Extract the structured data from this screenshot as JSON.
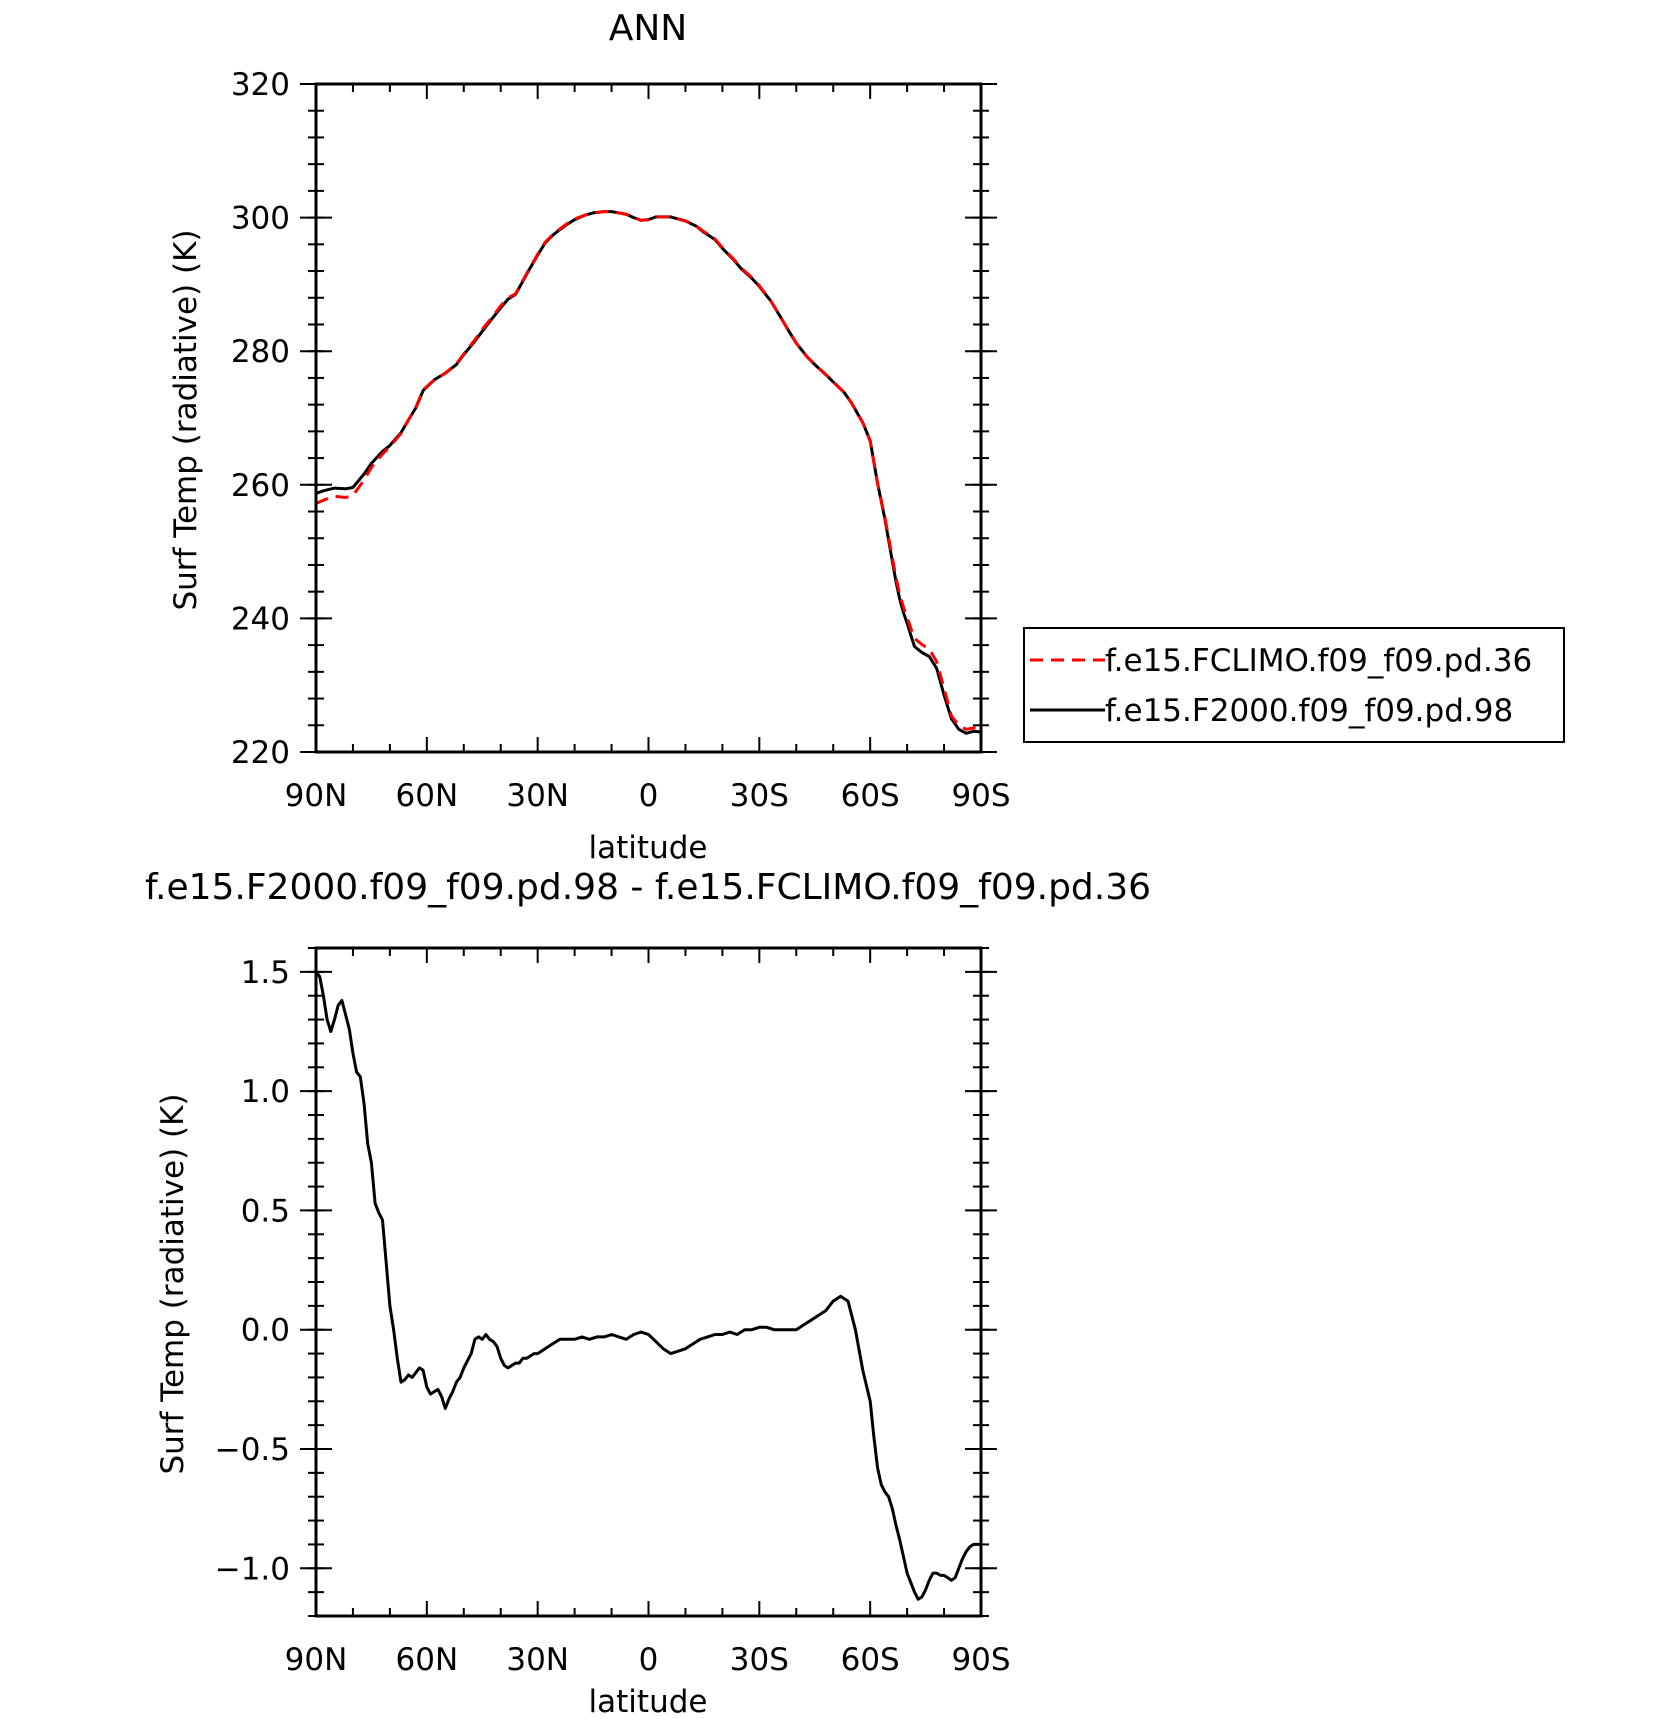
{
  "chart_data": [
    {
      "type": "line",
      "title": "ANN",
      "xlabel": "latitude",
      "ylabel": "Surf Temp (radiative) (K)",
      "xlim": [
        90,
        -90
      ],
      "ylim": [
        220,
        320
      ],
      "xticks": [
        90,
        60,
        30,
        0,
        -30,
        -60,
        -90
      ],
      "xtick_labels": [
        "90N",
        "60N",
        "30N",
        "0",
        "30S",
        "60S",
        "90S"
      ],
      "yticks": [
        220,
        240,
        260,
        280,
        300,
        320
      ],
      "ytick_labels": [
        "220",
        "240",
        "260",
        "280",
        "300",
        "320"
      ],
      "grid": false,
      "legend_position": "right",
      "series": [
        {
          "name": "f.e15.FCLIMO.f09_f09.pd.36",
          "color": "#ff0000",
          "dash": "dashed",
          "x": [
            90,
            88,
            85,
            82,
            80,
            77,
            75,
            72,
            70,
            67,
            65,
            63,
            61,
            58,
            55,
            52,
            50,
            47,
            45,
            42,
            40,
            38,
            36,
            34,
            32,
            30,
            28,
            26,
            24,
            22,
            20,
            17,
            15,
            12,
            10,
            8,
            6,
            4,
            2,
            0,
            -2,
            -4,
            -6,
            -8,
            -10,
            -13,
            -15,
            -18,
            -20,
            -23,
            -25,
            -28,
            -30,
            -33,
            -35,
            -38,
            -40,
            -43,
            -45,
            -48,
            -50,
            -53,
            -55,
            -58,
            -60,
            -62,
            -64,
            -65,
            -66,
            -67,
            -68,
            -69,
            -70,
            -71,
            -72,
            -74,
            -76,
            -78,
            -80,
            -82,
            -84,
            -86,
            -88,
            -90
          ],
          "y": [
            257.2,
            257.7,
            258.3,
            258.1,
            258.4,
            260.7,
            262.6,
            264.6,
            265.7,
            267.7,
            269.7,
            271.6,
            274.2,
            275.7,
            276.7,
            278.1,
            279.6,
            281.7,
            283.3,
            285.3,
            286.8,
            288.0,
            288.6,
            290.6,
            292.6,
            294.5,
            296.3,
            297.4,
            298.3,
            299.1,
            299.8,
            300.4,
            300.7,
            300.9,
            300.9,
            300.7,
            300.5,
            300.0,
            299.6,
            299.7,
            300.1,
            300.1,
            300.1,
            299.8,
            299.5,
            298.7,
            297.9,
            296.8,
            295.5,
            293.8,
            292.5,
            291.0,
            289.8,
            287.6,
            285.8,
            283.0,
            281.2,
            279.1,
            278.0,
            276.5,
            275.4,
            273.8,
            272.2,
            269.3,
            266.5,
            260.2,
            255.1,
            252.1,
            249.1,
            246.1,
            243.6,
            241.7,
            240.2,
            238.5,
            237.0,
            236.1,
            235.4,
            233.5,
            229.5,
            225.4,
            224.0,
            223.4,
            223.6,
            223.4
          ]
        },
        {
          "name": "f.e15.F2000.f09_f09.pd.98",
          "color": "#000000",
          "dash": "solid",
          "x": [
            90,
            88,
            85,
            82,
            80,
            77,
            75,
            72,
            70,
            67,
            65,
            63,
            61,
            58,
            55,
            52,
            50,
            47,
            45,
            42,
            40,
            38,
            36,
            34,
            32,
            30,
            28,
            26,
            24,
            22,
            20,
            17,
            15,
            12,
            10,
            8,
            6,
            4,
            2,
            0,
            -2,
            -4,
            -6,
            -8,
            -10,
            -13,
            -15,
            -18,
            -20,
            -23,
            -25,
            -28,
            -30,
            -33,
            -35,
            -38,
            -40,
            -43,
            -45,
            -48,
            -50,
            -53,
            -55,
            -58,
            -60,
            -62,
            -64,
            -65,
            -66,
            -67,
            -68,
            -69,
            -70,
            -71,
            -72,
            -74,
            -76,
            -78,
            -80,
            -82,
            -84,
            -86,
            -88,
            -90
          ],
          "y": [
            258.7,
            259.1,
            259.5,
            259.4,
            259.6,
            261.6,
            263.2,
            265.0,
            265.9,
            267.8,
            269.7,
            271.5,
            274.1,
            275.7,
            276.7,
            278.0,
            279.5,
            281.5,
            283.0,
            285.1,
            286.5,
            287.8,
            288.5,
            290.5,
            292.5,
            294.4,
            296.2,
            297.3,
            298.2,
            299.0,
            299.7,
            300.4,
            300.7,
            300.9,
            300.9,
            300.7,
            300.5,
            300.0,
            299.6,
            299.7,
            300.1,
            300.1,
            300.1,
            299.8,
            299.5,
            298.7,
            297.8,
            296.7,
            295.4,
            293.7,
            292.4,
            290.9,
            289.7,
            287.6,
            285.8,
            283.0,
            281.2,
            279.1,
            278.0,
            276.5,
            275.4,
            273.8,
            272.2,
            269.3,
            266.6,
            260.2,
            254.9,
            251.7,
            248.6,
            245.5,
            242.9,
            240.9,
            239.3,
            237.5,
            235.8,
            234.9,
            234.3,
            232.5,
            228.5,
            225.0,
            223.4,
            222.8,
            223.1,
            223.0
          ]
        }
      ]
    },
    {
      "type": "line",
      "title": "f.e15.F2000.f09_f09.pd.98 - f.e15.FCLIMO.f09_f09.pd.36",
      "xlabel": "latitude",
      "ylabel": "Surf Temp (radiative) (K)",
      "xlim": [
        90,
        -90
      ],
      "ylim": [
        -1.2,
        1.6
      ],
      "xticks": [
        90,
        60,
        30,
        0,
        -30,
        -60,
        -90
      ],
      "xtick_labels": [
        "90N",
        "60N",
        "30N",
        "0",
        "30S",
        "60S",
        "90S"
      ],
      "yticks": [
        -1.0,
        -0.5,
        0.0,
        0.5,
        1.0,
        1.5
      ],
      "ytick_labels": [
        "−1.0",
        "−0.5",
        "0.0",
        "0.5",
        "1.0",
        "1.5"
      ],
      "grid": false,
      "series": [
        {
          "color": "#000000",
          "dash": "solid",
          "x": [
            90,
            89,
            88,
            87,
            86,
            85,
            84,
            83,
            82,
            81,
            80,
            79,
            78,
            77,
            76,
            75,
            74,
            73,
            72,
            71,
            70,
            69,
            68,
            67,
            66,
            65,
            64,
            63,
            62,
            61,
            60,
            59,
            58,
            57,
            56,
            55,
            54,
            53,
            52,
            51,
            50,
            49,
            48,
            47,
            46,
            45,
            44,
            43,
            42,
            41,
            40,
            39,
            38,
            37,
            36,
            35,
            34,
            33,
            32,
            31,
            30,
            28,
            26,
            24,
            22,
            20,
            18,
            16,
            14,
            12,
            10,
            8,
            6,
            4,
            2,
            0,
            -2,
            -4,
            -6,
            -8,
            -10,
            -12,
            -14,
            -16,
            -18,
            -20,
            -22,
            -24,
            -26,
            -28,
            -30,
            -32,
            -34,
            -36,
            -38,
            -40,
            -42,
            -44,
            -46,
            -48,
            -50,
            -52,
            -54,
            -56,
            -58,
            -60,
            -61,
            -62,
            -63,
            -64,
            -65,
            -66,
            -67,
            -68,
            -69,
            -70,
            -71,
            -72,
            -73,
            -74,
            -75,
            -76,
            -77,
            -78,
            -79,
            -80,
            -81,
            -82,
            -83,
            -84,
            -85,
            -86,
            -87,
            -88,
            -89,
            -90
          ],
          "y": [
            1.5,
            1.48,
            1.4,
            1.3,
            1.25,
            1.3,
            1.36,
            1.38,
            1.32,
            1.26,
            1.16,
            1.08,
            1.06,
            0.95,
            0.78,
            0.7,
            0.53,
            0.49,
            0.46,
            0.28,
            0.1,
            0.0,
            -0.12,
            -0.22,
            -0.21,
            -0.19,
            -0.2,
            -0.18,
            -0.16,
            -0.17,
            -0.24,
            -0.27,
            -0.26,
            -0.25,
            -0.28,
            -0.33,
            -0.29,
            -0.26,
            -0.22,
            -0.2,
            -0.16,
            -0.13,
            -0.1,
            -0.04,
            -0.03,
            -0.04,
            -0.02,
            -0.04,
            -0.05,
            -0.07,
            -0.12,
            -0.15,
            -0.16,
            -0.15,
            -0.14,
            -0.14,
            -0.12,
            -0.12,
            -0.11,
            -0.1,
            -0.1,
            -0.08,
            -0.06,
            -0.04,
            -0.04,
            -0.04,
            -0.03,
            -0.04,
            -0.03,
            -0.03,
            -0.02,
            -0.03,
            -0.04,
            -0.02,
            -0.01,
            -0.02,
            -0.05,
            -0.08,
            -0.1,
            -0.09,
            -0.08,
            -0.06,
            -0.04,
            -0.03,
            -0.02,
            -0.02,
            -0.01,
            -0.02,
            0.0,
            0.0,
            0.01,
            0.01,
            0.0,
            0.0,
            0.0,
            0.0,
            0.02,
            0.04,
            0.06,
            0.08,
            0.12,
            0.14,
            0.12,
            0.0,
            -0.17,
            -0.3,
            -0.45,
            -0.58,
            -0.65,
            -0.68,
            -0.7,
            -0.75,
            -0.82,
            -0.88,
            -0.95,
            -1.02,
            -1.06,
            -1.1,
            -1.13,
            -1.12,
            -1.09,
            -1.05,
            -1.02,
            -1.02,
            -1.03,
            -1.03,
            -1.04,
            -1.05,
            -1.04,
            -1.0,
            -0.96,
            -0.93,
            -0.91,
            -0.9,
            -0.9,
            -0.9
          ]
        }
      ]
    }
  ]
}
